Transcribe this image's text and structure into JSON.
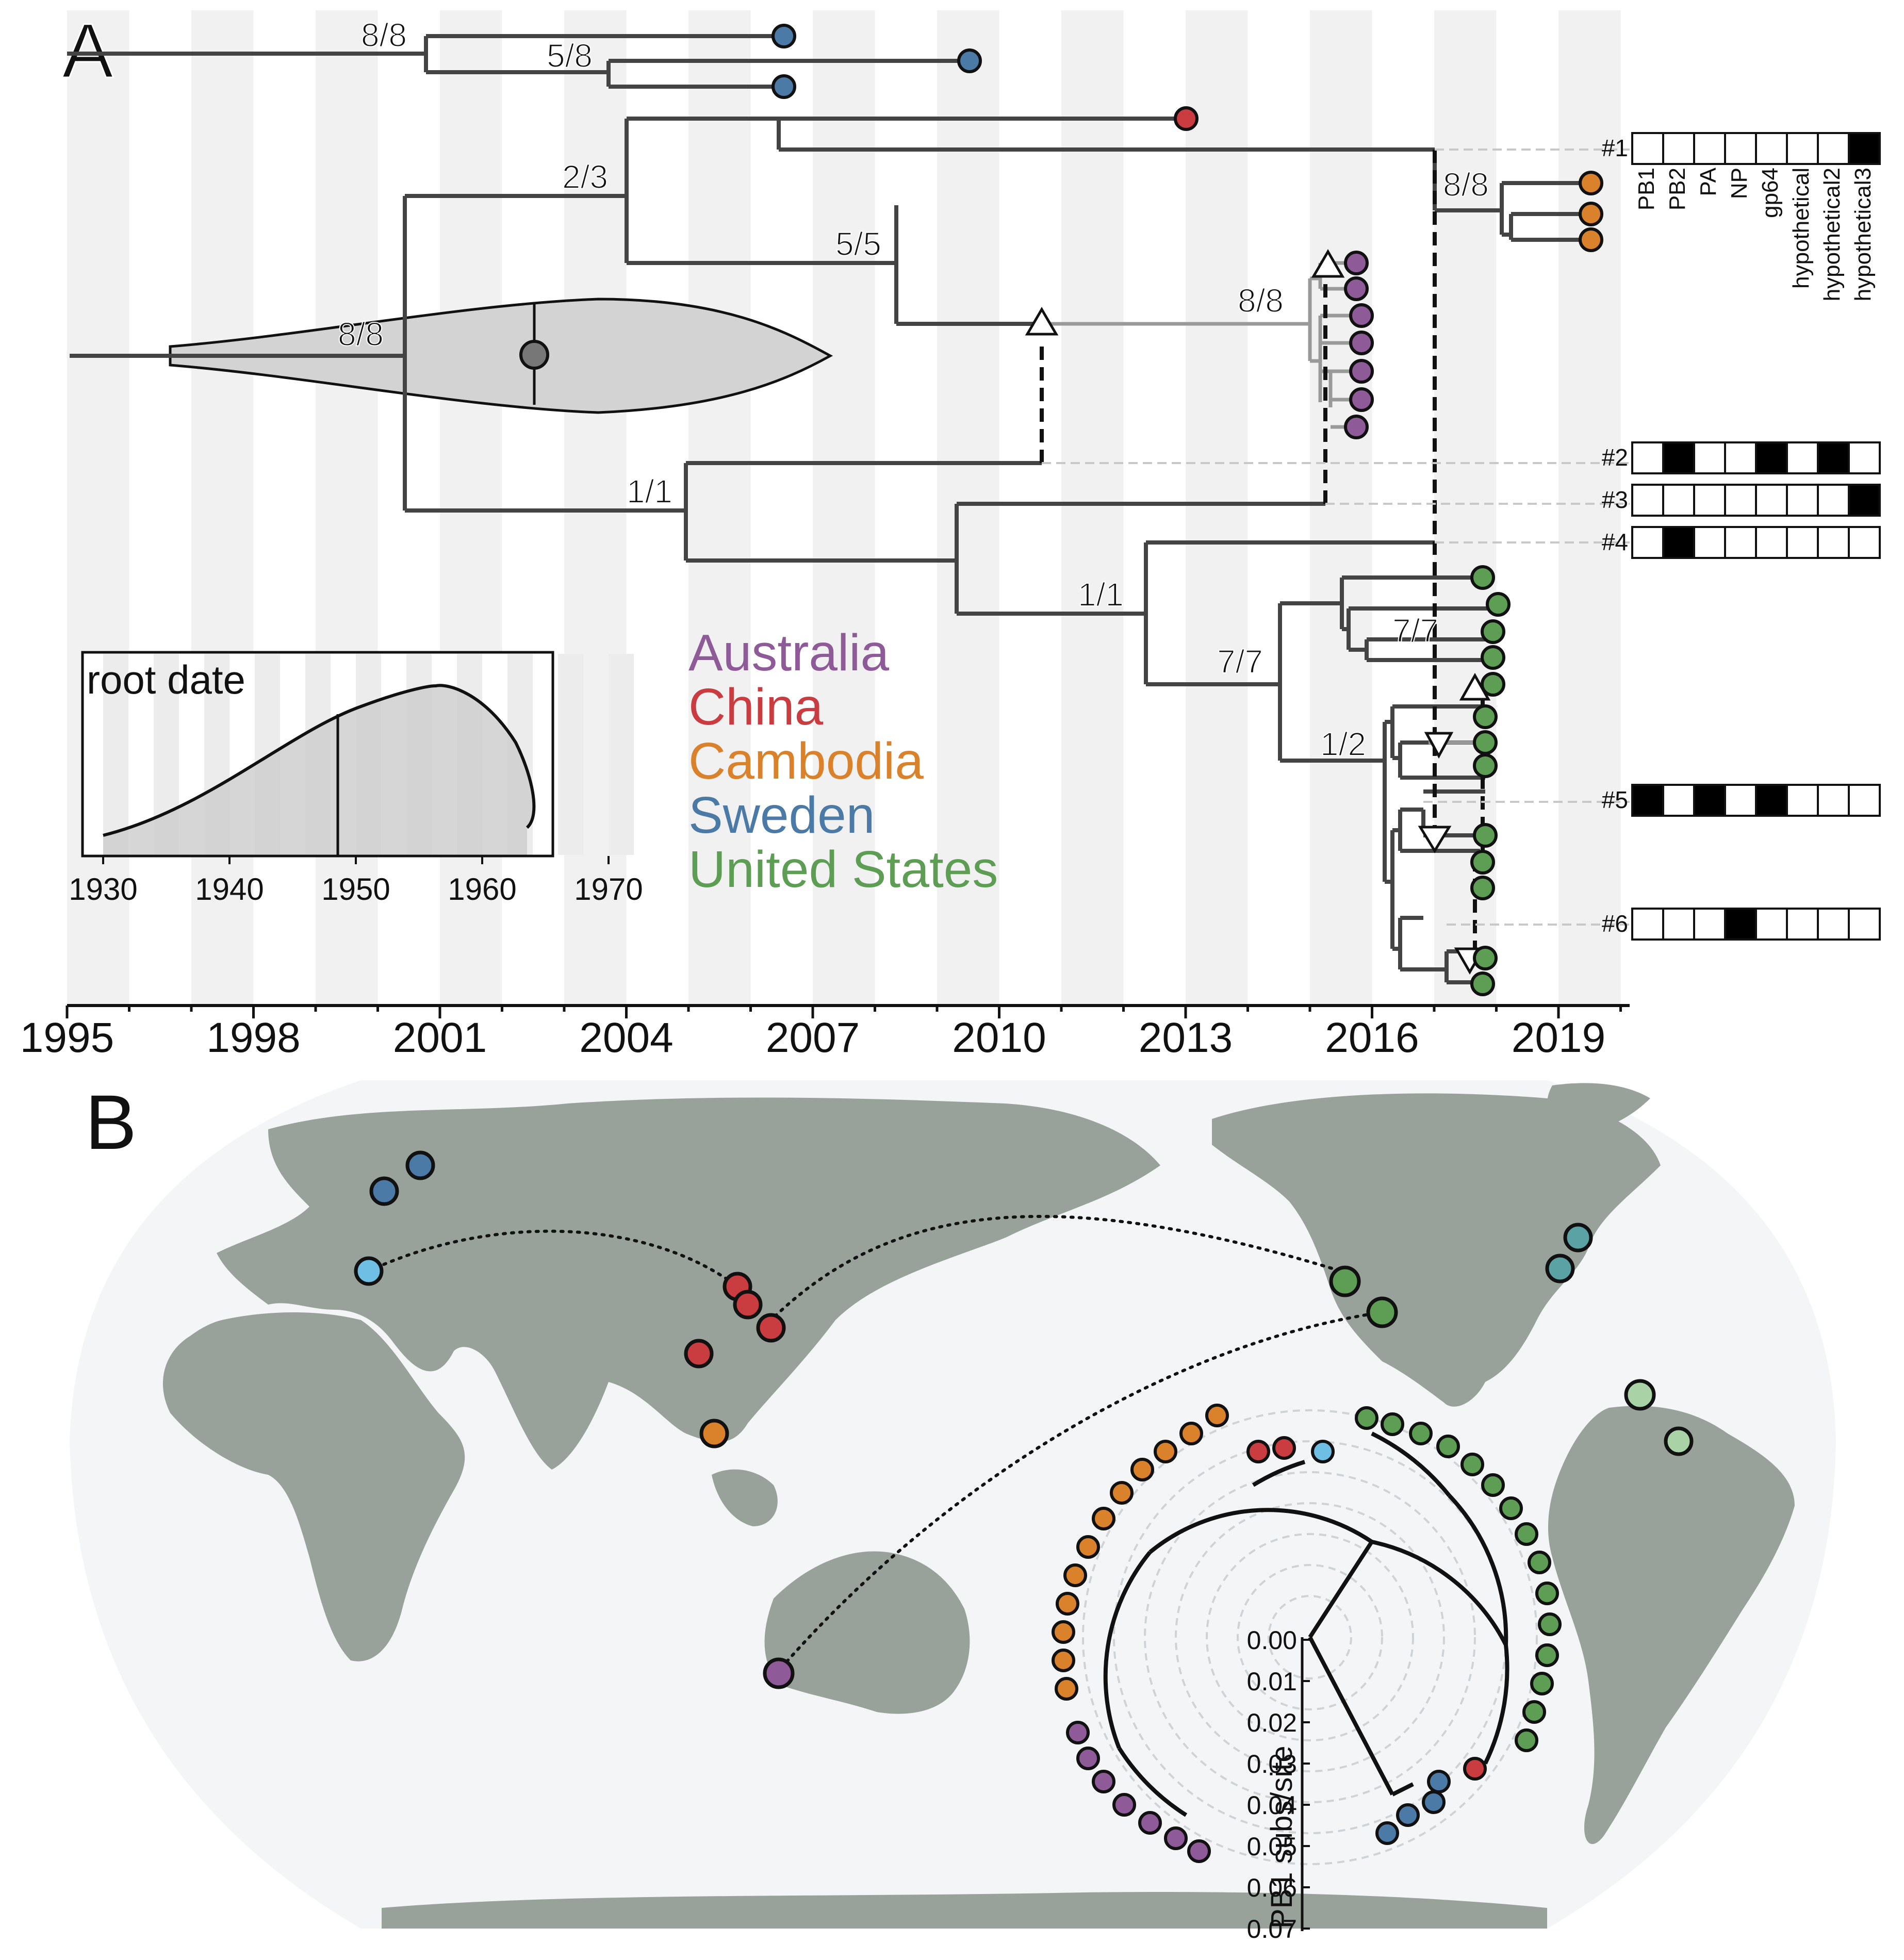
{
  "panels": {
    "a": "A",
    "b": "B"
  },
  "timeline": {
    "tick_labels": [
      "1995",
      "1998",
      "2001",
      "2004",
      "2007",
      "2010",
      "2013",
      "2016",
      "2019"
    ],
    "start_year": 1995,
    "end_year": 2020
  },
  "support_labels": [
    "8/8",
    "5/8",
    "2/3",
    "5/5",
    "8/8",
    "8/8",
    "1/1",
    "8/8",
    "1/1",
    "7/7",
    "7/7",
    "1/2"
  ],
  "legend": [
    {
      "name": "Australia",
      "color": "#8f5a98"
    },
    {
      "name": "China",
      "color": "#c93c3f"
    },
    {
      "name": "Cambodia",
      "color": "#d9822b"
    },
    {
      "name": "Sweden",
      "color": "#4b7aa6"
    },
    {
      "name": "United States",
      "color": "#5d9e54"
    }
  ],
  "inset": {
    "title": "root date",
    "x_ticks": [
      "1930",
      "1940",
      "1950",
      "1960",
      "1970"
    ],
    "median_year": 1952
  },
  "reassortment": {
    "segments": [
      "PB1",
      "PB2",
      "PA",
      "NP",
      "gp64",
      "hypothetical",
      "hypothetical2",
      "hypothetical3"
    ],
    "events": [
      {
        "id": "#1",
        "pattern": [
          0,
          0,
          0,
          0,
          0,
          0,
          0,
          1
        ]
      },
      {
        "id": "#2",
        "pattern": [
          0,
          1,
          0,
          0,
          1,
          0,
          1,
          0
        ]
      },
      {
        "id": "#3",
        "pattern": [
          0,
          0,
          0,
          0,
          0,
          0,
          0,
          1
        ]
      },
      {
        "id": "#4",
        "pattern": [
          0,
          1,
          0,
          0,
          0,
          0,
          0,
          0
        ]
      },
      {
        "id": "#5",
        "pattern": [
          1,
          0,
          1,
          0,
          1,
          0,
          0,
          0
        ]
      },
      {
        "id": "#6",
        "pattern": [
          0,
          0,
          0,
          1,
          0,
          0,
          0,
          0
        ]
      }
    ]
  },
  "map": {
    "extra_colors": {
      "light_blue": "#6fbfe4",
      "teal": "#5aa2a4",
      "pale_green": "#a9d3a6"
    }
  },
  "radial": {
    "axis_label": "PB1 subs/site",
    "ticks": [
      "0.00",
      "0.01",
      "0.02",
      "0.03",
      "0.04",
      "0.05",
      "0.06",
      "0.07"
    ]
  }
}
